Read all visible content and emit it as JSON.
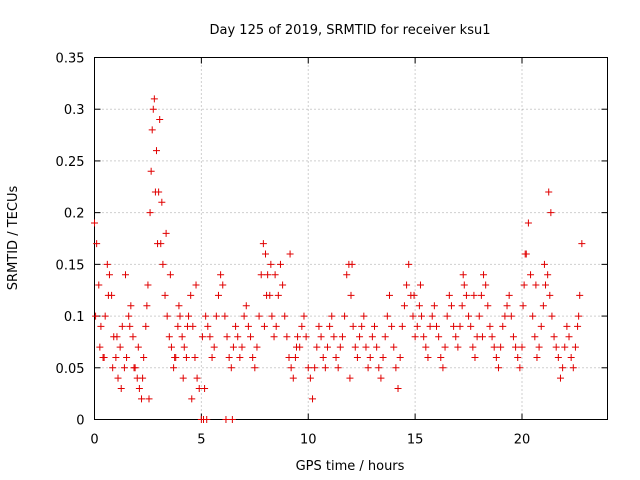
{
  "chart_data": {
    "type": "scatter",
    "title": "Day 125 of 2019, SRMTID for receiver ksu1",
    "xlabel": "GPS time / hours",
    "ylabel": "SRMTID / TECUs",
    "xlim": [
      0,
      24
    ],
    "ylim": [
      0,
      0.35
    ],
    "x_ticks": [
      0,
      5,
      10,
      15,
      20
    ],
    "y_ticks": [
      0,
      0.05,
      0.1,
      0.15,
      0.2,
      0.25,
      0.3,
      0.35
    ],
    "x_tick_labels": [
      "0",
      "5",
      "10",
      "15",
      "20"
    ],
    "y_tick_labels": [
      "0",
      "0.05",
      "0.1",
      "0.15",
      "0.2",
      "0.25",
      "0.3",
      "0.35"
    ],
    "grid": true,
    "marker": "+",
    "color": "#e00000",
    "series": [
      {
        "name": "SRMTID",
        "x": [
          0.0,
          0.1,
          0.2,
          0.3,
          0.4,
          0.5,
          0.6,
          0.7,
          0.8,
          0.9,
          1.0,
          1.1,
          1.2,
          1.3,
          1.4,
          1.5,
          1.6,
          1.7,
          1.8,
          1.9,
          2.0,
          2.1,
          2.2,
          2.3,
          2.4,
          2.5,
          2.6,
          2.7,
          2.8,
          2.9,
          3.0,
          3.1,
          3.2,
          3.3,
          3.4,
          3.5,
          3.6,
          3.7,
          3.8,
          3.9,
          4.0,
          4.1,
          4.2,
          4.3,
          4.4,
          4.5,
          4.6,
          4.7,
          4.8,
          4.9,
          5.0,
          5.1,
          5.2,
          5.3,
          5.4,
          5.5,
          5.6,
          5.7,
          5.8,
          5.9,
          6.0,
          6.1,
          6.2,
          6.3,
          6.4,
          6.5,
          6.6,
          6.7,
          6.8,
          6.9,
          7.0,
          7.1,
          7.2,
          7.3,
          7.4,
          7.5,
          7.6,
          7.7,
          7.8,
          7.9,
          8.0,
          8.1,
          8.2,
          8.3,
          8.4,
          8.5,
          8.6,
          8.7,
          8.8,
          8.9,
          9.0,
          9.1,
          9.2,
          9.3,
          9.4,
          9.5,
          9.6,
          9.7,
          9.8,
          9.9,
          10.0,
          10.1,
          10.2,
          10.3,
          10.4,
          10.5,
          10.6,
          10.7,
          10.8,
          10.9,
          11.0,
          11.1,
          11.2,
          11.3,
          11.4,
          11.5,
          11.6,
          11.7,
          11.8,
          11.9,
          12.0,
          12.1,
          12.2,
          12.3,
          12.4,
          12.5,
          12.6,
          12.7,
          12.8,
          12.9,
          13.0,
          13.1,
          13.2,
          13.3,
          13.4,
          13.5,
          13.6,
          13.7,
          13.8,
          13.9,
          14.0,
          14.1,
          14.2,
          14.3,
          14.4,
          14.5,
          14.6,
          14.7,
          14.8,
          14.9,
          15.0,
          15.1,
          15.2,
          15.3,
          15.4,
          15.5,
          15.6,
          15.7,
          15.8,
          15.9,
          16.0,
          16.1,
          16.2,
          16.3,
          16.4,
          16.5,
          16.6,
          16.7,
          16.8,
          16.9,
          17.0,
          17.1,
          17.2,
          17.3,
          17.4,
          17.5,
          17.6,
          17.7,
          17.8,
          17.9,
          18.0,
          18.1,
          18.2,
          18.3,
          18.4,
          18.5,
          18.6,
          18.7,
          18.8,
          18.9,
          19.0,
          19.1,
          19.2,
          19.3,
          19.4,
          19.5,
          19.6,
          19.7,
          19.8,
          19.9,
          20.0,
          20.1,
          20.2,
          20.3,
          20.4,
          20.5,
          20.6,
          20.7,
          20.8,
          20.9,
          21.0,
          21.1,
          21.2,
          21.3,
          21.4,
          21.5,
          21.6,
          21.7,
          21.8,
          21.9,
          22.0,
          22.1,
          22.2,
          22.3,
          22.4,
          22.5,
          22.6,
          22.7,
          22.8,
          0.05,
          0.25,
          0.45,
          0.65,
          0.85,
          1.05,
          1.25,
          1.45,
          1.65,
          1.85,
          2.05,
          2.25,
          2.45,
          2.55,
          2.65,
          2.75,
          2.85,
          2.95,
          3.05,
          3.15,
          3.35,
          3.55,
          3.75,
          3.95,
          4.15,
          4.35,
          4.55,
          4.75,
          5.05,
          5.15,
          5.25,
          6.15,
          6.45,
          7.95,
          8.05,
          8.25,
          8.45,
          9.15,
          9.45,
          11.95,
          12.05,
          14.95,
          15.25,
          17.25,
          17.75,
          18.15,
          20.05,
          20.15,
          20.65,
          21.05,
          21.25,
          21.35,
          22.65
        ],
        "y": [
          0.19,
          0.17,
          0.13,
          0.09,
          0.06,
          0.1,
          0.15,
          0.14,
          0.12,
          0.08,
          0.06,
          0.04,
          0.07,
          0.09,
          0.05,
          0.06,
          0.1,
          0.11,
          0.08,
          0.05,
          0.04,
          0.03,
          0.02,
          0.06,
          0.09,
          0.13,
          0.2,
          0.28,
          0.31,
          0.26,
          0.22,
          0.17,
          0.15,
          0.12,
          0.1,
          0.08,
          0.07,
          0.05,
          0.06,
          0.09,
          0.1,
          0.08,
          0.07,
          0.06,
          0.1,
          0.12,
          0.09,
          0.06,
          0.04,
          0.03,
          0.0,
          0.0,
          0.1,
          0.09,
          0.08,
          0.06,
          0.07,
          0.1,
          0.12,
          0.14,
          0.13,
          0.1,
          0.08,
          0.06,
          0.05,
          0.07,
          0.09,
          0.08,
          0.06,
          0.07,
          0.1,
          0.11,
          0.09,
          0.08,
          0.06,
          0.05,
          0.07,
          0.1,
          0.14,
          0.17,
          0.16,
          0.14,
          0.12,
          0.1,
          0.08,
          0.09,
          0.12,
          0.15,
          0.13,
          0.1,
          0.08,
          0.06,
          0.05,
          0.04,
          0.06,
          0.08,
          0.07,
          0.09,
          0.1,
          0.08,
          0.05,
          0.04,
          0.02,
          0.05,
          0.07,
          0.09,
          0.08,
          0.06,
          0.05,
          0.07,
          0.09,
          0.1,
          0.08,
          0.06,
          0.05,
          0.07,
          0.08,
          0.1,
          0.14,
          0.15,
          0.12,
          0.09,
          0.07,
          0.06,
          0.08,
          0.09,
          0.1,
          0.07,
          0.05,
          0.06,
          0.08,
          0.09,
          0.07,
          0.05,
          0.04,
          0.06,
          0.08,
          0.1,
          0.12,
          0.09,
          0.07,
          0.05,
          0.03,
          0.06,
          0.09,
          0.11,
          0.13,
          0.15,
          0.12,
          0.1,
          0.08,
          0.09,
          0.11,
          0.1,
          0.08,
          0.07,
          0.06,
          0.09,
          0.1,
          0.11,
          0.09,
          0.08,
          0.06,
          0.05,
          0.07,
          0.1,
          0.12,
          0.11,
          0.09,
          0.08,
          0.07,
          0.09,
          0.11,
          0.13,
          0.12,
          0.1,
          0.09,
          0.07,
          0.06,
          0.08,
          0.1,
          0.12,
          0.14,
          0.13,
          0.11,
          0.09,
          0.08,
          0.07,
          0.06,
          0.05,
          0.07,
          0.09,
          0.1,
          0.11,
          0.12,
          0.1,
          0.08,
          0.07,
          0.06,
          0.05,
          0.07,
          0.13,
          0.16,
          0.19,
          0.14,
          0.1,
          0.08,
          0.06,
          0.07,
          0.09,
          0.11,
          0.13,
          0.14,
          0.12,
          0.1,
          0.08,
          0.07,
          0.06,
          0.04,
          0.05,
          0.07,
          0.09,
          0.08,
          0.06,
          0.05,
          0.07,
          0.09,
          0.12,
          0.17,
          0.1,
          0.07,
          0.06,
          0.12,
          0.05,
          0.08,
          0.03,
          0.14,
          0.09,
          0.05,
          0.07,
          0.04,
          0.11,
          0.02,
          0.24,
          0.3,
          0.22,
          0.17,
          0.29,
          0.21,
          0.18,
          0.14,
          0.06,
          0.11,
          0.04,
          0.09,
          0.02,
          0.13,
          0.08,
          0.03,
          0.0,
          0.0,
          0.0,
          0.09,
          0.12,
          0.15,
          0.14,
          0.16,
          0.07,
          0.04,
          0.15,
          0.12,
          0.13,
          0.14,
          0.12,
          0.08,
          0.11,
          0.16,
          0.13,
          0.15,
          0.22,
          0.2,
          0.1
        ]
      }
    ]
  }
}
